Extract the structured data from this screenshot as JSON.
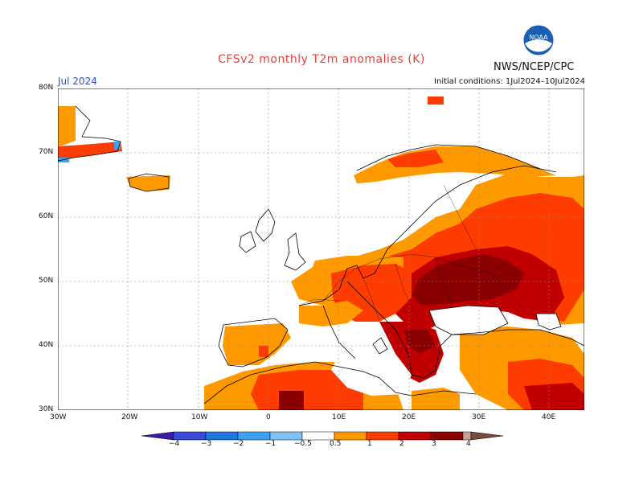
{
  "title": "CFSv2 monthly T2m anomalies (K)",
  "agency": "NWS/NCEP/CPC",
  "logo_text": "NOAA",
  "month": "Jul 2024",
  "initial_conditions": "Initial conditions: 1Jul2024–10Jul2024",
  "lat_ticks": [
    "80N",
    "70N",
    "60N",
    "50N",
    "40N",
    "30N"
  ],
  "lon_ticks": [
    "30W",
    "20W",
    "10W",
    "0",
    "10E",
    "20E",
    "30E",
    "40E"
  ],
  "legend": {
    "labels": [
      "−4",
      "−3",
      "−2",
      "−1",
      "−0.5",
      "0.5",
      "1",
      "2",
      "3",
      "4"
    ],
    "colors": [
      "#3a1aa8",
      "#3a4ad8",
      "#1e78e0",
      "#3ea0f0",
      "#7ec2f8",
      "#ffffff",
      "#ff9900",
      "#ff3c00",
      "#c00000",
      "#8a0000",
      "#c8a096",
      "#7a4a3a"
    ]
  },
  "anomaly_colors": {
    "c1": "#ff9900",
    "c2": "#ff3c00",
    "c3": "#c00000",
    "c4": "#8a0000",
    "cold1": "#7ec2f8",
    "cold2": "#3ea0f0"
  }
}
